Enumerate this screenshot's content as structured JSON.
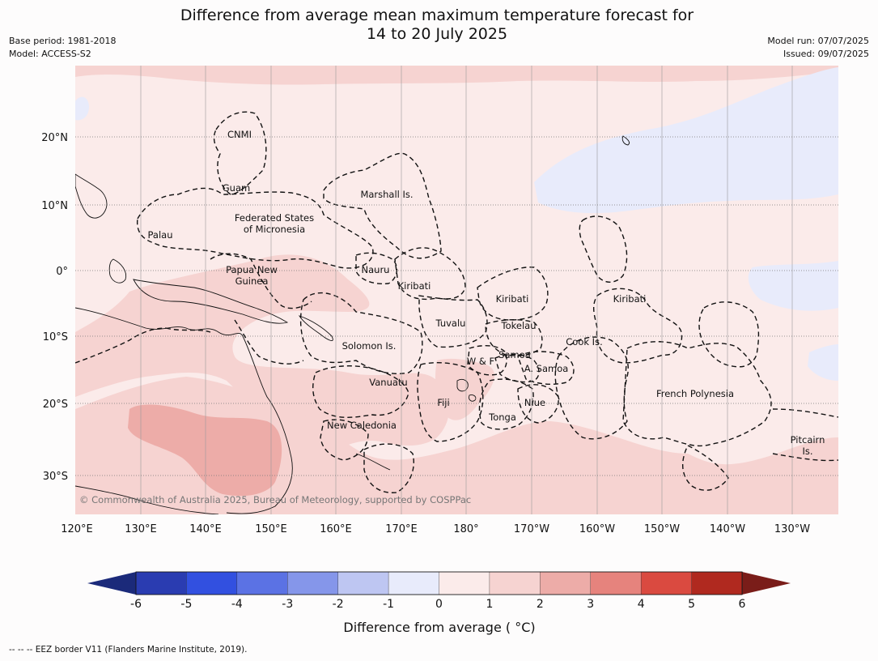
{
  "title_line1": "Difference from average mean maximum temperature forecast for",
  "title_line2": "14 to 20 July 2025",
  "base_period": "Base period: 1981-2018",
  "model": "Model: ACCESS-S2",
  "model_run": "Model run: 07/07/2025",
  "issued": "Issued: 09/07/2025",
  "lon_labels": [
    "120°E",
    "130°E",
    "140°E",
    "150°E",
    "160°E",
    "170°E",
    "180°",
    "170°W",
    "160°W",
    "150°W",
    "140°W",
    "130°W"
  ],
  "lat_labels": [
    "20°N",
    "10°N",
    "0°",
    "10°S",
    "20°S",
    "30°S"
  ],
  "regions": [
    {
      "name": "CNMI"
    },
    {
      "name": "Guam"
    },
    {
      "name": "Marshall Is."
    },
    {
      "name": "Federated States\nof Micronesia"
    },
    {
      "name": "Palau"
    },
    {
      "name": "Papua New\nGuinea"
    },
    {
      "name": "Nauru"
    },
    {
      "name": "Kiribati"
    },
    {
      "name": "Kiribati"
    },
    {
      "name": "Kiribati"
    },
    {
      "name": "Tuvalu"
    },
    {
      "name": "Tokelau"
    },
    {
      "name": "Cook Is."
    },
    {
      "name": "Solomon Is."
    },
    {
      "name": "W & F"
    },
    {
      "name": "Samoa"
    },
    {
      "name": "A. Samoa"
    },
    {
      "name": "Vanuatu"
    },
    {
      "name": "Fiji"
    },
    {
      "name": "Niue"
    },
    {
      "name": "French Polynesia"
    },
    {
      "name": "Tonga"
    },
    {
      "name": "New Caledonia"
    },
    {
      "name": "Pitcairn\nIs."
    }
  ],
  "copyright": "© Commonwealth of Australia 2025, Bureau of Meteorology, supported by COSPPac",
  "colorbar": {
    "ticks": [
      "-6",
      "-5",
      "-4",
      "-3",
      "-2",
      "-1",
      "0",
      "1",
      "2",
      "3",
      "4",
      "5",
      "6"
    ],
    "colors": [
      "#2a3cb1",
      "#3250e0",
      "#5b72e4",
      "#8596ea",
      "#bec6f2",
      "#e8ebfb",
      "#fbebea",
      "#f6d3d1",
      "#edaca8",
      "#e6837d",
      "#da4a40",
      "#b0291f"
    ],
    "under_color": "#1b2a7a",
    "over_color": "#7a1d19",
    "label": "Difference from average ( °C)"
  },
  "footer": "--  --  -- EEZ border V11 (Flanders Marine Institute, 2019)."
}
